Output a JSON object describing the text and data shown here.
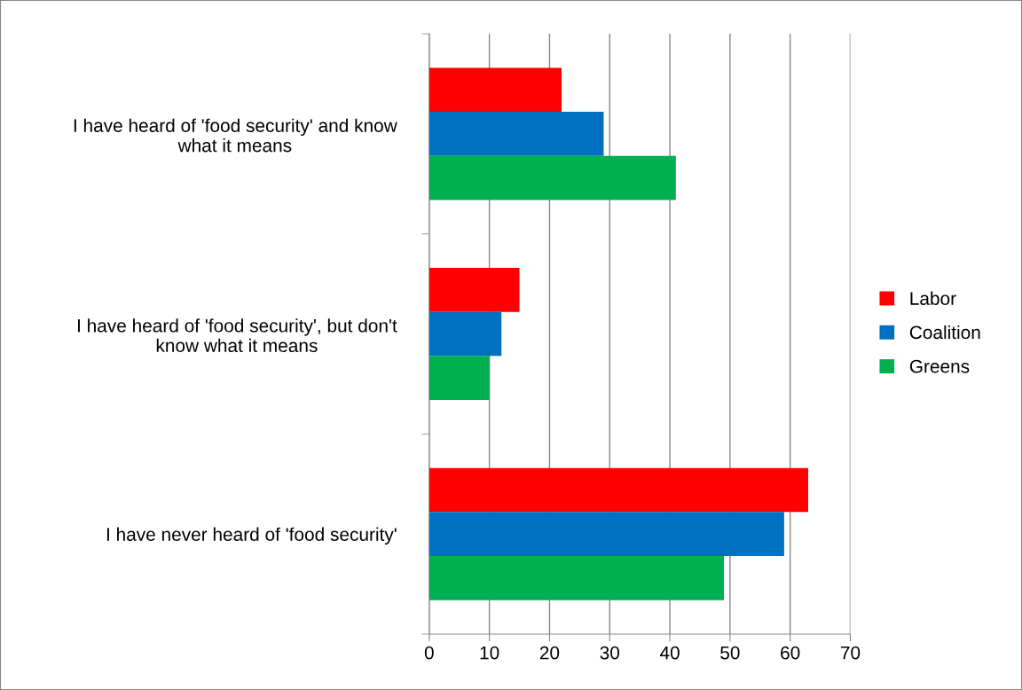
{
  "chart_data": {
    "type": "bar",
    "orientation": "horizontal",
    "categories": [
      "I have heard of 'food security' and know\nwhat it means",
      "I have heard of 'food security', but don't\nknow what it means",
      "I have never heard of 'food security'"
    ],
    "series": [
      {
        "name": "Labor",
        "color": "#ff0000",
        "values": [
          22,
          15,
          63
        ]
      },
      {
        "name": "Coalition",
        "color": "#0070c0",
        "values": [
          29,
          12,
          59
        ]
      },
      {
        "name": "Greens",
        "color": "#00b050",
        "values": [
          41,
          10,
          49
        ]
      }
    ],
    "xlim": [
      0,
      70
    ],
    "xticks": [
      0,
      10,
      20,
      30,
      40,
      50,
      60,
      70
    ],
    "grid": "x",
    "legend": "right"
  }
}
